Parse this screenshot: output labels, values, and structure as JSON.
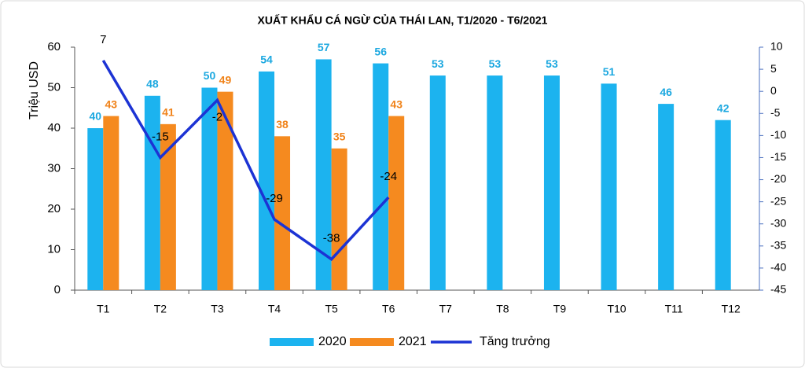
{
  "chart_data": {
    "type": "bar",
    "title": "XUẤT KHẨU CÁ NGỪ CỦA THÁI LAN, T1/2020 - T6/2021",
    "y_label": "Triệu USD",
    "categories": [
      "T1",
      "T2",
      "T3",
      "T4",
      "T5",
      "T6",
      "T7",
      "T8",
      "T9",
      "T10",
      "T11",
      "T12"
    ],
    "series": [
      {
        "name": "2020",
        "color": "#1cb3ef",
        "label_color": "#1ca8e0",
        "values": [
          40,
          48,
          50,
          54,
          57,
          56,
          53,
          53,
          53,
          51,
          46,
          42
        ]
      },
      {
        "name": "2021",
        "color": "#f58a1f",
        "label_color": "#f08218",
        "values": [
          43,
          41,
          49,
          38,
          35,
          43,
          null,
          null,
          null,
          null,
          null,
          null
        ]
      },
      {
        "name": "Tăng trưởng",
        "type": "line",
        "axis": "y2",
        "color": "#1c33d4",
        "values": [
          7,
          -15,
          -2,
          -29,
          -38,
          -24,
          null,
          null,
          null,
          null,
          null,
          null
        ]
      }
    ],
    "ylim": [
      0,
      60
    ],
    "yticks": [
      0,
      10,
      20,
      30,
      40,
      50,
      60
    ],
    "y2lim": [
      -45,
      10
    ],
    "y2ticks": [
      -45,
      -40,
      -35,
      -30,
      -25,
      -20,
      -15,
      -10,
      -5,
      0,
      5,
      10
    ],
    "legend": "bottom"
  }
}
